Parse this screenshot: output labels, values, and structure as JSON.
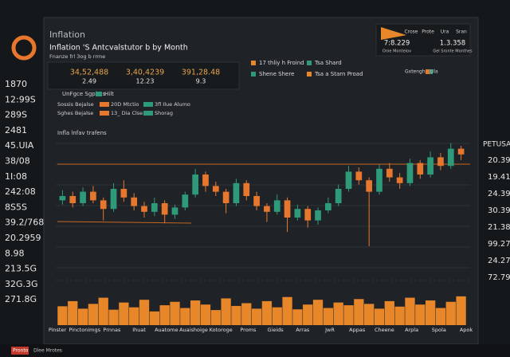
{
  "sidebar_left": [
    "1870",
    "12:99S",
    "289S",
    "2481",
    "45.UIA",
    "38/08",
    "1I:08",
    "242:08",
    "8S5S",
    "39.2/768",
    "20.2959",
    "8.98",
    "213.5G",
    "32G.3G",
    "271.8G"
  ],
  "sidebar_right": {
    "title": "PETUSAT",
    "values": [
      "20.39",
      "19.41",
      "24.39",
      "30.39",
      "21.38",
      "99.27",
      "24.27",
      "72.79"
    ]
  },
  "header": {
    "title": "Inflation",
    "subtitle": "Inflation 'S Antcvalstutor b by Month",
    "caption": "Fnanze frl  3og b rrme"
  },
  "stats": [
    {
      "value": "34,52,488",
      "sub": "2.49"
    },
    {
      "value": "3,40,4239",
      "sub": "12.23"
    },
    {
      "value": "391,28.48",
      "sub": "9.3"
    }
  ],
  "legend": [
    "17 thliy h Froind",
    "Tsa Shard",
    "Shene Shere",
    "Tsa a Starn Proad"
  ],
  "summary": {
    "headers": [
      "Crose",
      "Prote",
      "Ura",
      "Sran"
    ],
    "values": [
      "7:8.229",
      "1.3.358"
    ],
    "labels": [
      "Onie Monteiov",
      "Gel Sronte Monthes"
    ]
  },
  "filters": {
    "title": "UnFgce Sgphes",
    "tag": "Hilt",
    "rows": [
      [
        "Sossis Bejalse",
        "20D Mtctio",
        "3fl Ilue Alumo"
      ],
      [
        "Sghes Bejalse",
        "13_ Dia Clse",
        "Shorag"
      ]
    ]
  },
  "chart": {
    "type": "candlestick",
    "title": "Infla lnfav trafens",
    "legend": [
      "Gxtenghe",
      "Ula"
    ],
    "x_labels": [
      "Pinster",
      "Pinctonimgs",
      "Prnnas",
      "Ihuat",
      "Auatome",
      "Auaishoige",
      "Kotoroge",
      "Proms",
      "Gieids",
      "Arras",
      "JwR",
      "Appas",
      "Cheene",
      "Arpla",
      "Spola",
      "Apok"
    ],
    "open": [
      52,
      55,
      50,
      58,
      52,
      46,
      60,
      54,
      48,
      44,
      50,
      42,
      47,
      56,
      70,
      62,
      58,
      50,
      64,
      55,
      48,
      44,
      52,
      40,
      46,
      38,
      45,
      50,
      60,
      72,
      66,
      58,
      74,
      68,
      64,
      78,
      70,
      82,
      76,
      88
    ],
    "high": [
      59,
      58,
      61,
      62,
      54,
      64,
      66,
      57,
      51,
      54,
      52,
      49,
      58,
      74,
      72,
      65,
      60,
      67,
      66,
      58,
      50,
      56,
      54,
      49,
      48,
      47,
      54,
      63,
      76,
      75,
      68,
      77,
      78,
      71,
      81,
      80,
      86,
      85,
      92,
      90
    ],
    "low": [
      49,
      47,
      48,
      50,
      38,
      44,
      51,
      45,
      40,
      41,
      36,
      39,
      45,
      54,
      58,
      55,
      43,
      48,
      52,
      45,
      37,
      42,
      30,
      38,
      33,
      35,
      43,
      48,
      58,
      63,
      20,
      56,
      65,
      60,
      62,
      67,
      68,
      73,
      74,
      80
    ],
    "close": [
      55,
      50,
      58,
      52,
      46,
      60,
      54,
      48,
      44,
      50,
      42,
      47,
      56,
      70,
      62,
      58,
      50,
      64,
      55,
      48,
      44,
      52,
      40,
      46,
      38,
      45,
      50,
      60,
      72,
      66,
      58,
      74,
      68,
      64,
      78,
      70,
      82,
      76,
      88,
      84
    ],
    "volume": [
      55,
      70,
      48,
      62,
      80,
      45,
      66,
      52,
      74,
      40,
      58,
      68,
      50,
      72,
      60,
      44,
      78,
      56,
      64,
      48,
      70,
      52,
      82,
      46,
      60,
      74,
      50,
      66,
      58,
      76,
      62,
      48,
      70,
      54,
      80,
      60,
      72,
      50,
      68,
      84
    ],
    "ylim": [
      0,
      100
    ],
    "volume_ylim": [
      0,
      100
    ],
    "up_color": "#2f9a7a",
    "down_color": "#e8772e",
    "volume_color": "#e8862a"
  },
  "footer": [
    "Pronto",
    "Dlee Mrotes"
  ]
}
